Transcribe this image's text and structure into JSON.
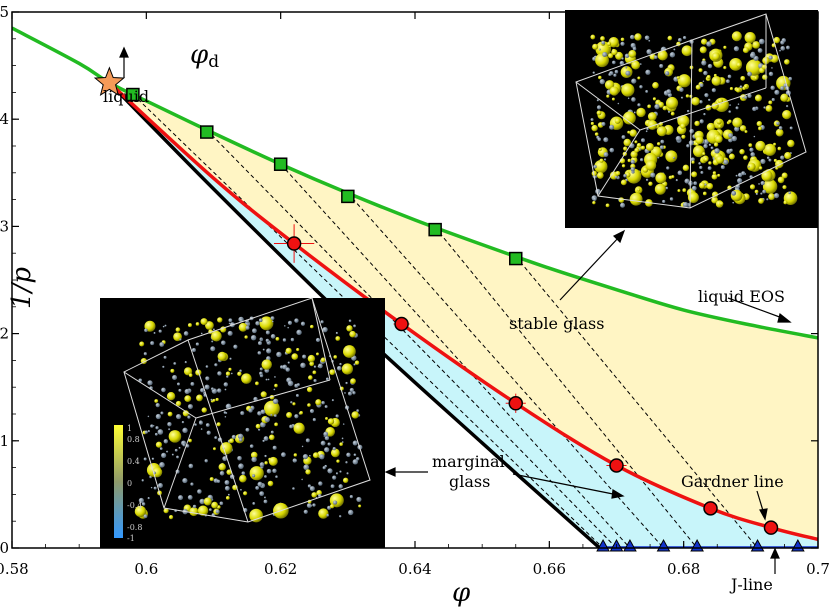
{
  "chart_data": {
    "type": "line",
    "xlabel": "φ",
    "ylabel": "1/p",
    "xlim": [
      0.58,
      0.7
    ],
    "ylim": [
      0.0,
      0.05
    ],
    "xticks": [
      "0.58",
      "0.6",
      "0.62",
      "0.64",
      "0.66",
      "0.68",
      "0.7"
    ],
    "yticks": [
      "0.0",
      "0.01",
      "0.02",
      "0.03",
      "0.04",
      "0.05"
    ],
    "grid": false,
    "dynamical_point": {
      "label": "φd",
      "x": 0.5945,
      "y": 0.0434
    },
    "liquid_eos_curve": {
      "color": "#22bb22",
      "x": [
        0.58,
        0.59,
        0.5945,
        0.6,
        0.61,
        0.62,
        0.63,
        0.64,
        0.65,
        0.66,
        0.67,
        0.68,
        0.69,
        0.7
      ],
      "y": [
        0.0485,
        0.0452,
        0.0434,
        0.0417,
        0.0387,
        0.0358,
        0.0331,
        0.0306,
        0.0283,
        0.0261,
        0.0241,
        0.0222,
        0.0208,
        0.0196
      ]
    },
    "stable_glass_points": {
      "color": "#22bb22",
      "x": [
        0.598,
        0.609,
        0.62,
        0.63,
        0.643,
        0.655
      ],
      "y": [
        0.0423,
        0.0388,
        0.0358,
        0.0328,
        0.0297,
        0.027
      ]
    },
    "gardner_line": {
      "color": "#ee1111",
      "x": [
        0.5945,
        0.61,
        0.622,
        0.638,
        0.655,
        0.67,
        0.684,
        0.693,
        0.7
      ],
      "y": [
        0.0434,
        0.0345,
        0.0284,
        0.0209,
        0.0135,
        0.0077,
        0.0037,
        0.0019,
        0.0008
      ]
    },
    "gardner_points": {
      "color": "#ee1111",
      "x": [
        0.622,
        0.638,
        0.655,
        0.67,
        0.684,
        0.693
      ],
      "y": [
        0.0284,
        0.0209,
        0.0135,
        0.0077,
        0.0037,
        0.0019
      ],
      "xerr": [
        0.003,
        0.0012,
        0.0015,
        0.0015,
        0.0008,
        0.0008
      ],
      "yerr": [
        0.0018,
        0.0006,
        0.0009,
        0.0006,
        0.0003,
        0.0003
      ]
    },
    "marginal_boundary": {
      "color": "#000000",
      "x": [
        0.5945,
        0.61,
        0.63,
        0.65,
        0.6675
      ],
      "y": [
        0.0434,
        0.0335,
        0.0212,
        0.0098,
        0.0
      ]
    },
    "j_line_points": {
      "color": "#1133cc",
      "x": [
        0.668,
        0.67,
        0.672,
        0.677,
        0.682,
        0.691,
        0.697
      ],
      "y": [
        0,
        0,
        0,
        0,
        0,
        0,
        0
      ]
    },
    "compression_lines": {
      "start_x": [
        0.598,
        0.609,
        0.62,
        0.63,
        0.643,
        0.655
      ],
      "end_x": [
        0.668,
        0.67,
        0.672,
        0.677,
        0.682,
        0.691
      ]
    },
    "annotations": {
      "liquid": "liquid",
      "stable_glass": "stable glass",
      "liquid_eos": "liquid EOS",
      "marginal_glass_1": "marginal",
      "marginal_glass_2": "glass",
      "gardner_line": "Gardner line",
      "j_line": "J-line",
      "phi_d_symbol": "φ",
      "phi_d_sub": "d"
    },
    "colorbar": {
      "ticks": [
        "1",
        "0.8",
        "0.4",
        "0",
        "-0.4",
        "-0.8",
        "-1"
      ],
      "colors": [
        "#ffff33",
        "#3399ff"
      ]
    },
    "region_colors": {
      "stable_glass": "#fff5c4",
      "marginal_glass": "#c8f5fa"
    }
  }
}
